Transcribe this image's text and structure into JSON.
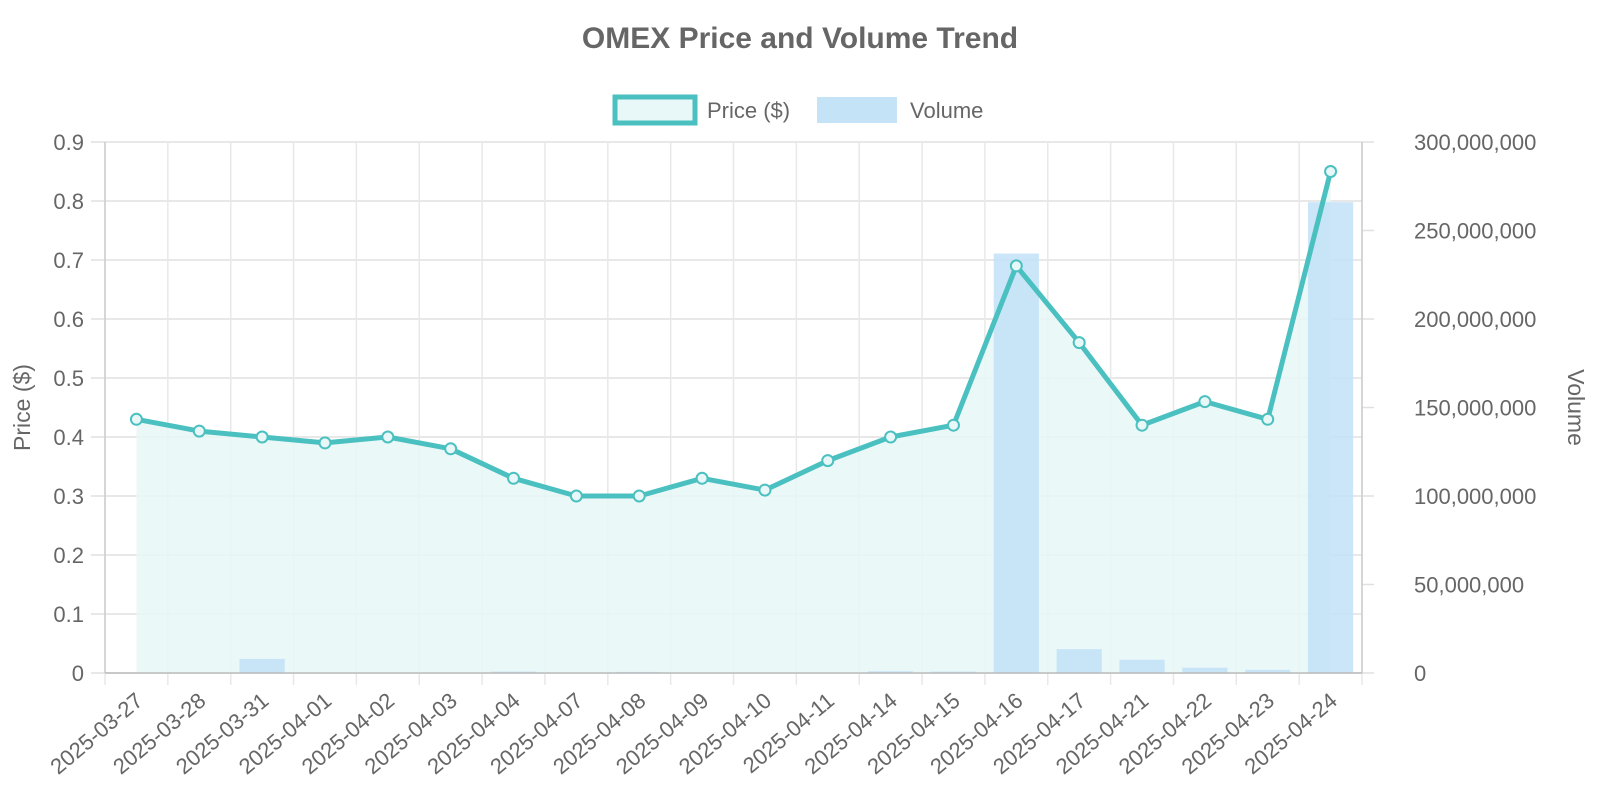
{
  "chart_data": {
    "type": "bar+line",
    "title": "OMEX Price and Volume Trend",
    "categories": [
      "2025-03-27",
      "2025-03-28",
      "2025-03-31",
      "2025-04-01",
      "2025-04-02",
      "2025-04-03",
      "2025-04-04",
      "2025-04-07",
      "2025-04-08",
      "2025-04-09",
      "2025-04-10",
      "2025-04-11",
      "2025-04-14",
      "2025-04-15",
      "2025-04-16",
      "2025-04-17",
      "2025-04-21",
      "2025-04-22",
      "2025-04-23",
      "2025-04-24"
    ],
    "series": [
      {
        "name": "Price ($)",
        "type": "line",
        "axis": "left",
        "color": "#4bc0c0",
        "fill": "#e8f7f7",
        "values": [
          0.43,
          0.41,
          0.4,
          0.39,
          0.4,
          0.38,
          0.33,
          0.3,
          0.3,
          0.33,
          0.31,
          0.36,
          0.4,
          0.42,
          0.69,
          0.56,
          0.42,
          0.46,
          0.43,
          0.85
        ]
      },
      {
        "name": "Volume",
        "type": "bar",
        "axis": "right",
        "color": "#c2e2f7",
        "values": [
          0,
          0,
          8000000,
          300000,
          0,
          0,
          800000,
          300000,
          600000,
          0,
          0,
          0,
          1000000,
          800000,
          237000000,
          13500000,
          7500000,
          3000000,
          1800000,
          266000000
        ]
      }
    ],
    "left_axis": {
      "label": "Price ($)",
      "ylim": [
        0,
        0.9
      ],
      "ticks": [
        "0",
        "0.1",
        "0.2",
        "0.3",
        "0.4",
        "0.5",
        "0.6",
        "0.7",
        "0.8",
        "0.9"
      ]
    },
    "right_axis": {
      "label": "Volume",
      "ylim": [
        0,
        300000000
      ],
      "ticks": [
        "0",
        "50,000,000",
        "100,000,000",
        "150,000,000",
        "200,000,000",
        "250,000,000",
        "300,000,000"
      ]
    },
    "legend": {
      "position": "top",
      "items": [
        {
          "label": "Price ($)",
          "color": "#4bc0c0"
        },
        {
          "label": "Volume",
          "color": "#c2e2f7"
        }
      ]
    },
    "grid": true
  }
}
